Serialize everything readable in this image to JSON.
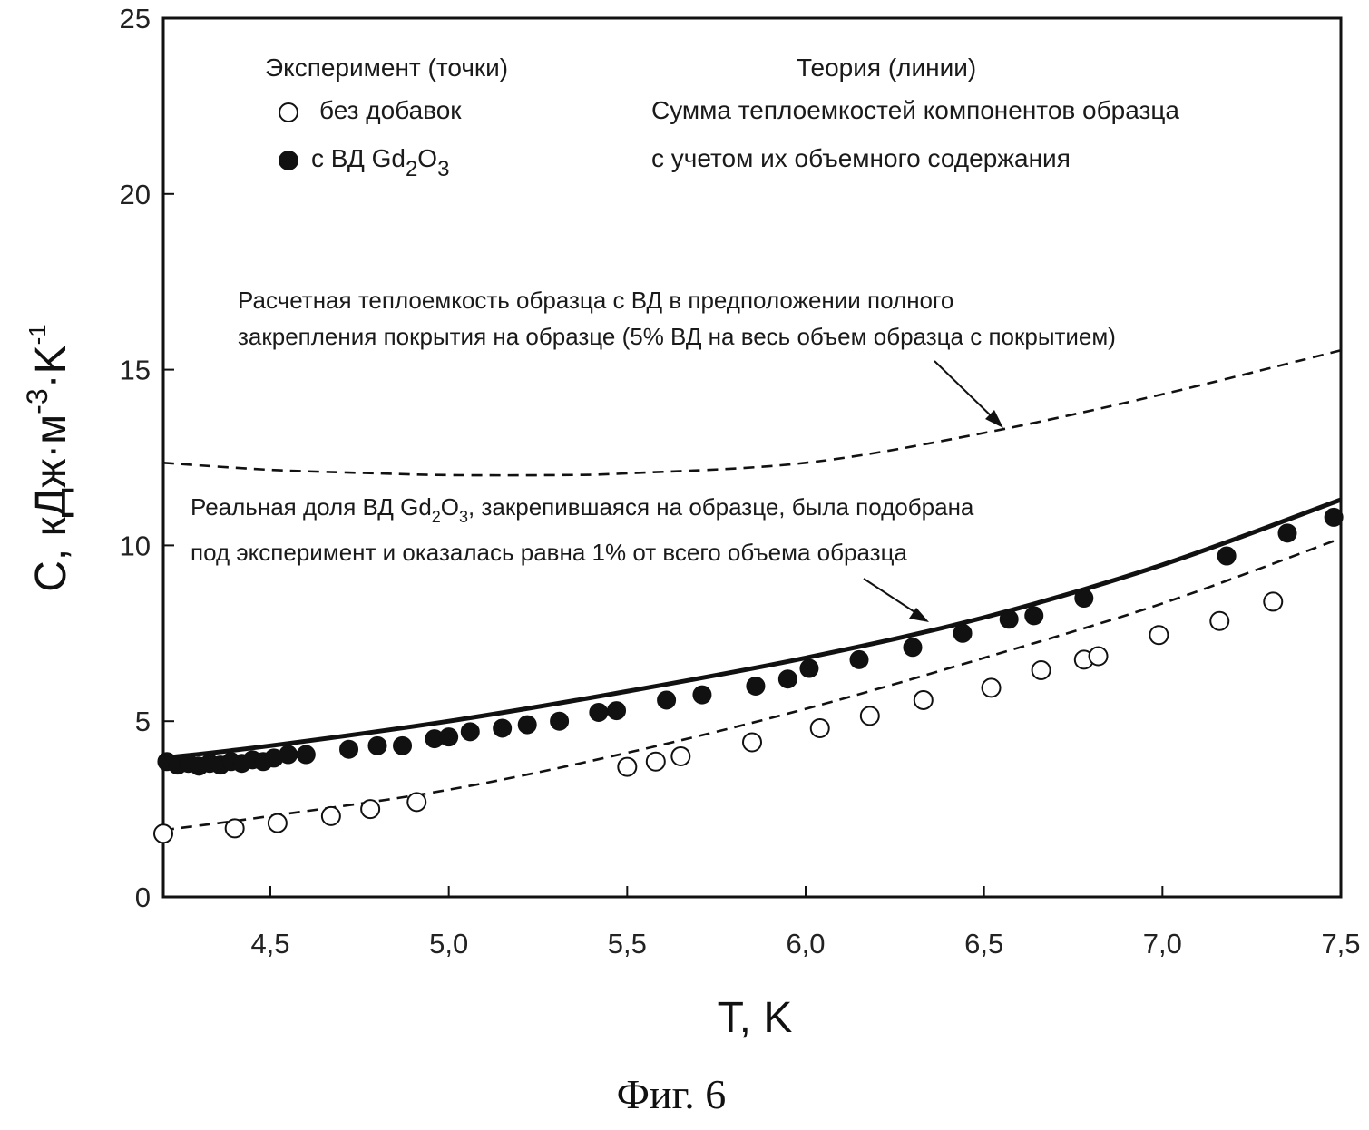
{
  "figure_caption": "Фиг. 6",
  "legend": {
    "experiment_header": "Эксперимент (точки)",
    "theory_header": "Теория (линии)",
    "open_label": "без добавок",
    "filled_label_prefix": "с ВД Gd",
    "filled_label_sub1": "2",
    "filled_label_mid": "O",
    "filled_label_sub2": "3",
    "theory_line1": "Сумма теплоемкостей  компонентов образца",
    "theory_line2": "с учетом их объемного содержания"
  },
  "annotations": {
    "upper_line1": "Расчетная теплоемкость образца с ВД в предположении полного",
    "upper_line2": "закрепления покрытия на образце (5% ВД на весь объем образца с покрытием)",
    "lower_line1_a": "Реальная доля ВД Gd",
    "lower_line1_sub1": "2",
    "lower_line1_b": "O",
    "lower_line1_sub2": "3",
    "lower_line1_c": ", закрепившаяся на образце, была подобрана",
    "lower_line2": "под эксперимент и оказалась равна 1%  от всего объема образца"
  },
  "axes": {
    "ylabel_main": "C, кДж·м",
    "ylabel_sup1": "-3",
    "ylabel_mid": "·K",
    "ylabel_sup2": "-1",
    "xlabel": "T, K"
  },
  "chart_data": {
    "type": "scatter",
    "title": "",
    "xlabel": "T, K",
    "ylabel": "C, кДж·м-3·K-1",
    "xlim": [
      4.2,
      7.5
    ],
    "ylim": [
      0,
      25
    ],
    "x_ticks": [
      4.5,
      5.0,
      5.5,
      6.0,
      6.5,
      7.0,
      7.5
    ],
    "x_tick_labels": [
      "4,5",
      "5,0",
      "5,5",
      "6,0",
      "6,5",
      "7,0",
      "7,5"
    ],
    "y_ticks": [
      0,
      5,
      10,
      15,
      20,
      25
    ],
    "y_tick_labels": [
      "0",
      "5",
      "10",
      "15",
      "20",
      "25"
    ],
    "grid": false,
    "series": [
      {
        "name": "без добавок",
        "kind": "points",
        "marker": "open-circle",
        "points": [
          [
            4.2,
            1.8
          ],
          [
            4.4,
            1.95
          ],
          [
            4.52,
            2.1
          ],
          [
            4.67,
            2.3
          ],
          [
            4.78,
            2.5
          ],
          [
            4.91,
            2.7
          ],
          [
            5.5,
            3.7
          ],
          [
            5.58,
            3.85
          ],
          [
            5.65,
            4.0
          ],
          [
            5.85,
            4.4
          ],
          [
            6.04,
            4.8
          ],
          [
            6.18,
            5.15
          ],
          [
            6.33,
            5.6
          ],
          [
            6.52,
            5.95
          ],
          [
            6.66,
            6.45
          ],
          [
            6.78,
            6.75
          ],
          [
            6.82,
            6.85
          ],
          [
            6.99,
            7.45
          ],
          [
            7.16,
            7.85
          ],
          [
            7.31,
            8.4
          ]
        ]
      },
      {
        "name": "с ВД Gd2O3",
        "kind": "points",
        "marker": "filled-circle",
        "points": [
          [
            4.21,
            3.85
          ],
          [
            4.24,
            3.75
          ],
          [
            4.27,
            3.8
          ],
          [
            4.3,
            3.72
          ],
          [
            4.33,
            3.8
          ],
          [
            4.36,
            3.75
          ],
          [
            4.39,
            3.85
          ],
          [
            4.42,
            3.8
          ],
          [
            4.45,
            3.9
          ],
          [
            4.48,
            3.85
          ],
          [
            4.51,
            3.95
          ],
          [
            4.55,
            4.05
          ],
          [
            4.6,
            4.05
          ],
          [
            4.72,
            4.2
          ],
          [
            4.8,
            4.3
          ],
          [
            4.87,
            4.3
          ],
          [
            4.96,
            4.5
          ],
          [
            5.0,
            4.55
          ],
          [
            5.06,
            4.7
          ],
          [
            5.15,
            4.8
          ],
          [
            5.22,
            4.9
          ],
          [
            5.31,
            5.0
          ],
          [
            5.42,
            5.25
          ],
          [
            5.47,
            5.3
          ],
          [
            5.61,
            5.6
          ],
          [
            5.71,
            5.75
          ],
          [
            5.86,
            6.0
          ],
          [
            5.95,
            6.2
          ],
          [
            6.01,
            6.5
          ],
          [
            6.15,
            6.75
          ],
          [
            6.3,
            7.1
          ],
          [
            6.44,
            7.5
          ],
          [
            6.57,
            7.9
          ],
          [
            6.64,
            8.0
          ],
          [
            6.78,
            8.5
          ],
          [
            7.18,
            9.7
          ],
          [
            7.35,
            10.35
          ],
          [
            7.48,
            10.8
          ]
        ]
      },
      {
        "name": "",
        "kind": "solid-line",
        "points": [
          [
            4.2,
            3.95
          ],
          [
            4.5,
            4.3
          ],
          [
            5.0,
            5.0
          ],
          [
            5.5,
            5.85
          ],
          [
            6.0,
            6.8
          ],
          [
            6.5,
            7.95
          ],
          [
            7.0,
            9.45
          ],
          [
            7.5,
            11.3
          ]
        ]
      },
      {
        "name": "",
        "kind": "dashed-line",
        "points": [
          [
            4.2,
            1.9
          ],
          [
            4.5,
            2.3
          ],
          [
            5.0,
            3.05
          ],
          [
            5.5,
            4.1
          ],
          [
            6.0,
            5.35
          ],
          [
            6.5,
            6.8
          ],
          [
            7.0,
            8.35
          ],
          [
            7.5,
            10.2
          ]
        ]
      },
      {
        "name": "",
        "kind": "dashed-line",
        "points": [
          [
            4.2,
            12.35
          ],
          [
            4.5,
            12.15
          ],
          [
            4.8,
            12.05
          ],
          [
            5.0,
            12.0
          ],
          [
            5.3,
            12.0
          ],
          [
            5.5,
            12.05
          ],
          [
            6.0,
            12.35
          ],
          [
            6.5,
            13.2
          ],
          [
            7.0,
            14.3
          ],
          [
            7.5,
            15.55
          ]
        ]
      }
    ]
  }
}
